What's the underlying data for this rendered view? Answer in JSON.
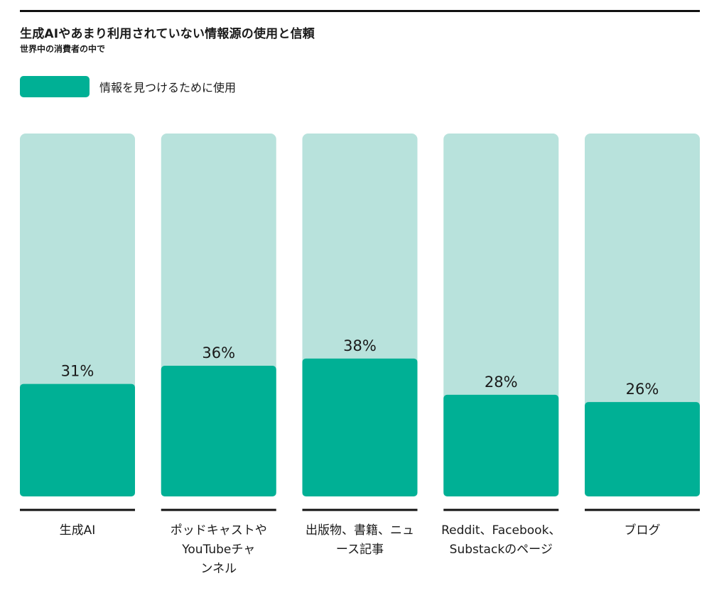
{
  "header": {
    "title": "生成AIやあまり利用されていない情報源の使用と信頼",
    "subtitle": "世界中の消費者の中で"
  },
  "legend": {
    "label": "情報を見つけるために使用"
  },
  "colors": {
    "bar_fill": "#00b095",
    "bar_track": "#b8e2dc",
    "rule": "#111111"
  },
  "chart_data": {
    "type": "bar",
    "categories": [
      [
        "生成AI"
      ],
      [
        "ポッドキャストや",
        "YouTubeチャ",
        "ンネル"
      ],
      [
        "出版物、書籍、ニュ",
        "ース記事"
      ],
      [
        "Reddit、Facebook、",
        "Substackのページ"
      ],
      [
        "ブログ"
      ]
    ],
    "series": [
      {
        "name": "情報を見つけるために使用",
        "values": [
          31,
          36,
          38,
          28,
          26
        ]
      }
    ],
    "data_labels": [
      "31%",
      "36%",
      "38%",
      "28%",
      "26%"
    ],
    "ylim": [
      0,
      100
    ],
    "grid": false,
    "legend_position": "top-left"
  }
}
